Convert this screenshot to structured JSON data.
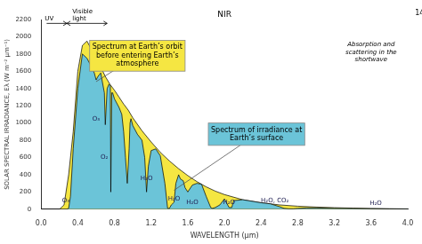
{
  "chart_data": {
    "type": "area",
    "xlabel": "WAVELENGTH (μm)",
    "ylabel": "SOLAR SPECTRAL IRRADIANCE, Eλ (W m⁻² μm⁻¹)",
    "xlim": [
      0,
      4.0
    ],
    "ylim": [
      0,
      2200
    ],
    "xticks": [
      {
        "value": 0,
        "label": "0.0"
      },
      0.4,
      0.8,
      1.2,
      1.6,
      {
        "value": 2.0,
        "label": "2.0"
      },
      2.4,
      2.8,
      3.2,
      3.6,
      {
        "value": 4.0,
        "label": "4.0"
      }
    ],
    "yticks": [
      0,
      200,
      400,
      600,
      800,
      1000,
      1200,
      1400,
      1600,
      1800,
      2000,
      2200
    ],
    "grid": false,
    "series": [
      {
        "color": "#F5E642",
        "x": [
          0.0,
          0.2,
          0.25,
          0.3,
          0.35,
          0.4,
          0.45,
          0.5,
          0.55,
          0.6,
          0.65,
          0.7,
          0.75,
          0.8,
          0.85,
          0.9,
          0.95,
          1.0,
          1.1,
          1.2,
          1.3,
          1.4,
          1.5,
          1.6,
          1.7,
          1.8,
          1.9,
          2.0,
          2.2,
          2.4,
          2.6,
          2.8,
          3.0,
          3.2,
          3.4,
          3.6,
          3.8,
          4.0
        ],
        "values": [
          0,
          0,
          50,
          400,
          900,
          1600,
          1900,
          1950,
          1850,
          1750,
          1650,
          1540,
          1450,
          1380,
          1300,
          1220,
          1150,
          1060,
          910,
          780,
          660,
          560,
          470,
          390,
          320,
          260,
          210,
          170,
          110,
          75,
          50,
          35,
          25,
          18,
          13,
          9,
          6,
          4
        ]
      },
      {
        "color": "#6BC4D8",
        "x": [
          0.0,
          0.2,
          0.28,
          0.3,
          0.32,
          0.35,
          0.4,
          0.45,
          0.5,
          0.55,
          0.58,
          0.6,
          0.62,
          0.65,
          0.69,
          0.7,
          0.72,
          0.74,
          0.755,
          0.76,
          0.765,
          0.77,
          0.78,
          0.8,
          0.85,
          0.88,
          0.9,
          0.92,
          0.94,
          0.96,
          0.97,
          0.98,
          1.0,
          1.05,
          1.1,
          1.13,
          1.15,
          1.17,
          1.2,
          1.25,
          1.3,
          1.35,
          1.38,
          1.4,
          1.42,
          1.45,
          1.47,
          1.5,
          1.52,
          1.55,
          1.57,
          1.6,
          1.65,
          1.7,
          1.75,
          1.8,
          1.85,
          1.87,
          1.9,
          1.95,
          2.0,
          2.02,
          2.05,
          2.08,
          2.1,
          2.2,
          2.3,
          2.4,
          2.5,
          2.6,
          2.65,
          2.7,
          2.75,
          2.8,
          2.9,
          3.0,
          3.2,
          3.4,
          3.6,
          3.8,
          4.0
        ],
        "values": [
          0,
          0,
          0,
          10,
          150,
          700,
          1400,
          1800,
          1750,
          1650,
          1580,
          1500,
          1540,
          1580,
          1350,
          980,
          1400,
          1450,
          1430,
          200,
          200,
          1350,
          1350,
          1280,
          1180,
          1100,
          900,
          600,
          300,
          700,
          1000,
          1050,
          970,
          870,
          800,
          600,
          200,
          500,
          680,
          700,
          620,
          300,
          10,
          10,
          50,
          80,
          300,
          400,
          350,
          330,
          250,
          200,
          280,
          300,
          290,
          150,
          20,
          10,
          20,
          50,
          120,
          80,
          20,
          20,
          100,
          110,
          92.5,
          75,
          62.5,
          30,
          10,
          5,
          5,
          10,
          15,
          15,
          10,
          8,
          5,
          3,
          2
        ]
      }
    ],
    "annotations": [
      "UV",
      "Visible\nlight",
      "NIR",
      "Spectrum at Earth’s orbit\nbefore entering Earth’s\natmosphere",
      "Spectrum of irradiance at\nEarth’s surface",
      "O₃",
      "O₃",
      "O₂",
      "H₂O",
      "H₂O",
      "H₂O",
      "H₂O",
      "H₂O, CO₂",
      "H₂O",
      "Absorption and\nscattering in the\nshortwave",
      "14"
    ]
  }
}
